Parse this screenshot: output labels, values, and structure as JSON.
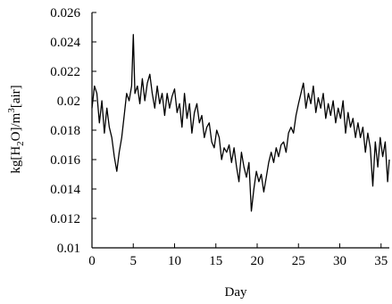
{
  "chart_data": {
    "type": "line",
    "title": "",
    "xlabel": "Day",
    "ylabel_parts": [
      "kg[H",
      "2",
      "O]/m",
      "3",
      "[air]"
    ],
    "xlim": [
      0,
      36
    ],
    "ylim": [
      0.01,
      0.026
    ],
    "xticks": [
      0,
      5,
      10,
      15,
      20,
      25,
      30,
      35
    ],
    "xtick_labels": [
      "0",
      "5",
      "10",
      "15",
      "20",
      "25",
      "30",
      "35"
    ],
    "yticks": [
      0.01,
      0.012,
      0.014,
      0.016,
      0.018,
      0.02,
      0.022,
      0.024,
      0.026
    ],
    "ytick_labels": [
      "0.01",
      "0.012",
      "0.014",
      "0.016",
      "0.018",
      "0.02",
      "0.022",
      "0.024",
      "0.026"
    ],
    "grid": false,
    "series": [
      {
        "color": "#000000",
        "x": [
          0,
          0.3,
          0.6,
          0.9,
          1.2,
          1.5,
          1.8,
          2.1,
          2.4,
          2.7,
          3.0,
          3.3,
          3.6,
          3.9,
          4.2,
          4.5,
          4.8,
          5.0,
          5.2,
          5.5,
          5.8,
          6.1,
          6.4,
          6.7,
          7.0,
          7.3,
          7.6,
          7.9,
          8.2,
          8.5,
          8.8,
          9.1,
          9.4,
          9.7,
          10.0,
          10.3,
          10.6,
          10.9,
          11.2,
          11.5,
          11.8,
          12.1,
          12.4,
          12.7,
          13.0,
          13.3,
          13.6,
          13.9,
          14.2,
          14.5,
          14.8,
          15.1,
          15.4,
          15.7,
          16.0,
          16.3,
          16.6,
          16.9,
          17.2,
          17.5,
          17.8,
          18.1,
          18.4,
          18.7,
          19.0,
          19.3,
          19.6,
          19.9,
          20.2,
          20.5,
          20.8,
          21.1,
          21.4,
          21.7,
          22.0,
          22.3,
          22.6,
          22.9,
          23.2,
          23.5,
          23.8,
          24.1,
          24.4,
          24.7,
          25.0,
          25.3,
          25.6,
          25.9,
          26.2,
          26.5,
          26.8,
          27.1,
          27.4,
          27.7,
          28.0,
          28.3,
          28.6,
          28.9,
          29.2,
          29.5,
          29.8,
          30.1,
          30.4,
          30.7,
          31.0,
          31.3,
          31.6,
          31.9,
          32.2,
          32.5,
          32.8,
          33.1,
          33.4,
          33.7,
          34.0,
          34.3,
          34.6,
          34.9,
          35.2,
          35.5,
          35.8,
          36.0
        ],
        "y": [
          0.0195,
          0.021,
          0.0205,
          0.0185,
          0.02,
          0.0178,
          0.0195,
          0.0182,
          0.0175,
          0.0162,
          0.0152,
          0.0165,
          0.0175,
          0.019,
          0.0205,
          0.02,
          0.021,
          0.0245,
          0.0205,
          0.021,
          0.0198,
          0.0215,
          0.02,
          0.0212,
          0.0218,
          0.0205,
          0.0195,
          0.021,
          0.0198,
          0.0205,
          0.019,
          0.0205,
          0.0195,
          0.0203,
          0.0208,
          0.0192,
          0.0198,
          0.0182,
          0.0205,
          0.0188,
          0.0198,
          0.0178,
          0.0192,
          0.0198,
          0.0185,
          0.019,
          0.0175,
          0.0182,
          0.0185,
          0.0172,
          0.0168,
          0.018,
          0.0175,
          0.016,
          0.0168,
          0.0165,
          0.017,
          0.0158,
          0.0168,
          0.0155,
          0.0145,
          0.0165,
          0.0155,
          0.0148,
          0.0158,
          0.0125,
          0.014,
          0.0152,
          0.0145,
          0.015,
          0.0138,
          0.0148,
          0.0158,
          0.0165,
          0.0158,
          0.0168,
          0.0162,
          0.017,
          0.0172,
          0.0165,
          0.0178,
          0.0182,
          0.0178,
          0.019,
          0.0198,
          0.0205,
          0.0212,
          0.0195,
          0.0205,
          0.0198,
          0.021,
          0.0192,
          0.0202,
          0.0195,
          0.0205,
          0.0188,
          0.0198,
          0.019,
          0.02,
          0.0185,
          0.0195,
          0.0188,
          0.02,
          0.0178,
          0.0192,
          0.0182,
          0.0188,
          0.0175,
          0.0185,
          0.0175,
          0.0182,
          0.0165,
          0.0178,
          0.0168,
          0.0142,
          0.0172,
          0.0155,
          0.0175,
          0.0162,
          0.0172,
          0.0145,
          0.016
        ]
      }
    ]
  }
}
